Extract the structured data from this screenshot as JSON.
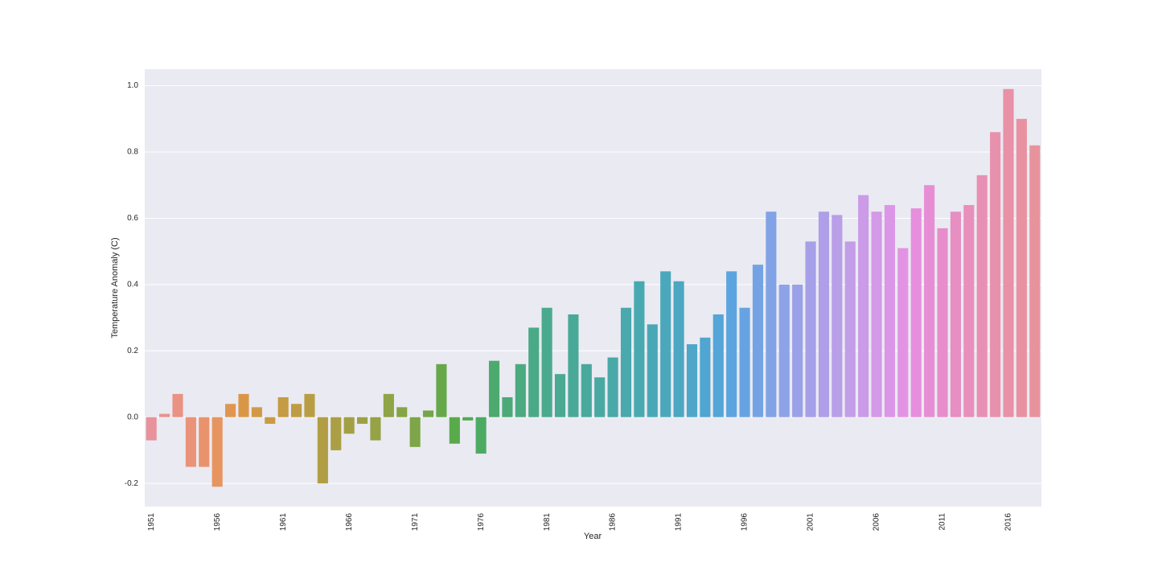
{
  "chart_data": {
    "type": "bar",
    "x_label": "Year",
    "y_label": "Temperature Anomaly (C)",
    "categories": [
      "1951",
      null,
      null,
      null,
      null,
      "1956",
      null,
      null,
      null,
      null,
      "1961",
      null,
      null,
      null,
      null,
      "1966",
      null,
      null,
      null,
      null,
      "1971",
      null,
      null,
      null,
      null,
      "1976",
      null,
      null,
      null,
      null,
      "1981",
      null,
      null,
      null,
      null,
      "1986",
      null,
      null,
      null,
      null,
      "1991",
      null,
      null,
      null,
      null,
      "1996",
      null,
      null,
      null,
      null,
      "2001",
      null,
      null,
      null,
      null,
      "2006",
      null,
      null,
      null,
      null,
      "2011",
      null,
      null,
      null,
      null,
      "2016",
      null,
      null
    ],
    "values": [
      -0.07,
      0.01,
      0.07,
      -0.15,
      -0.15,
      -0.21,
      0.04,
      0.07,
      0.03,
      -0.02,
      0.06,
      0.04,
      0.07,
      -0.2,
      -0.1,
      -0.05,
      -0.02,
      -0.07,
      0.07,
      0.03,
      -0.09,
      0.02,
      0.16,
      -0.08,
      -0.01,
      -0.11,
      0.17,
      0.06,
      0.16,
      0.27,
      0.33,
      0.13,
      0.31,
      0.16,
      0.12,
      0.18,
      0.33,
      0.41,
      0.28,
      0.44,
      0.41,
      0.22,
      0.24,
      0.31,
      0.44,
      0.33,
      0.46,
      0.62,
      0.4,
      0.4,
      0.53,
      0.62,
      0.61,
      0.53,
      0.67,
      0.62,
      0.64,
      0.51,
      0.63,
      0.7,
      0.57,
      0.62,
      0.64,
      0.73,
      0.86,
      0.99,
      0.9,
      0.82
    ],
    "colors": [
      "#e8929c",
      "#e9928f",
      "#ea9284",
      "#ea9378",
      "#e9936c",
      "#e79560",
      "#e09650",
      "#d99746",
      "#d29945",
      "#cb9a44",
      "#c59b44",
      "#be9c44",
      "#b89d44",
      "#b19e44",
      "#aa9f44",
      "#a3a044",
      "#9ca145",
      "#95a245",
      "#8ea446",
      "#85a546",
      "#7ca647",
      "#72a748",
      "#66a849",
      "#58aa4b",
      "#4faa55",
      "#4daa62",
      "#4caa6e",
      "#4baa78",
      "#4baa80",
      "#4aaa87",
      "#4aaa8d",
      "#4aa993",
      "#49a998",
      "#49a99d",
      "#49a9a2",
      "#49a9a7",
      "#49a9ac",
      "#49a9b1",
      "#4aa8b6",
      "#4ba8bc",
      "#4ca7c2",
      "#4ea7c9",
      "#50a6d0",
      "#54a5d8",
      "#5ba4df",
      "#66a3e3",
      "#74a3e5",
      "#81a3e6",
      "#8ea2e7",
      "#9aa1e8",
      "#a5a0e8",
      "#af9fe8",
      "#b99ee8",
      "#c29de8",
      "#cb9be8",
      "#d499e8",
      "#dc96e7",
      "#e393e4",
      "#e68fdd",
      "#e78dd4",
      "#e78dcb",
      "#e78ec3",
      "#e88fbb",
      "#e890b4",
      "#e891ad",
      "#e891a7",
      "#e892a1",
      "#e8929c"
    ],
    "ylim": [
      -0.27,
      1.05
    ],
    "yticks": [
      -0.2,
      {
        "value": 0,
        "label": "0.0"
      },
      0.2,
      0.4,
      0.6,
      0.8,
      {
        "value": 1,
        "label": "1.0"
      }
    ],
    "grid": true
  }
}
